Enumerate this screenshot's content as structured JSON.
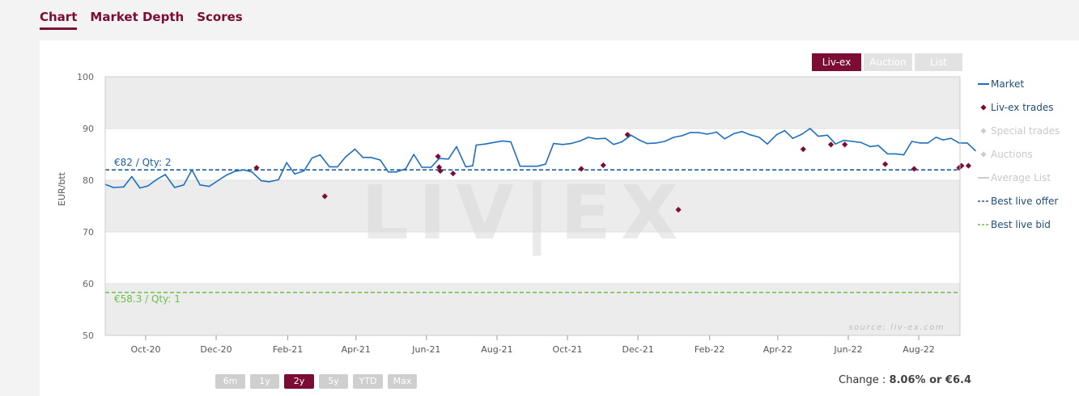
{
  "tabs": [
    {
      "label": "Chart",
      "active": true
    },
    {
      "label": "Market Depth",
      "active": false
    },
    {
      "label": "Scores",
      "active": false
    }
  ],
  "source_buttons": [
    {
      "label": "Liv-ex",
      "active": true
    },
    {
      "label": "Auction",
      "active": false
    },
    {
      "label": "List",
      "active": false
    }
  ],
  "range_buttons": [
    {
      "label": "6m",
      "active": false
    },
    {
      "label": "1y",
      "active": false
    },
    {
      "label": "2y",
      "active": true
    },
    {
      "label": "5y",
      "active": false
    },
    {
      "label": "YTD",
      "active": false
    },
    {
      "label": "Max",
      "active": false
    }
  ],
  "change": {
    "label": "Change :",
    "value": "8.06% or €6.4"
  },
  "watermark": "LIV|EX",
  "source_note": "source: liv-ex.com",
  "colors": {
    "brand": "#7b0c34",
    "market": "#1f6fc0",
    "offer": "#1a5e9e",
    "bid": "#6cc04a",
    "band": "#ececec"
  },
  "chart_data": {
    "type": "line",
    "ylabel": "EUR/btt",
    "ylim": [
      50,
      100
    ],
    "yticks": [
      50,
      60,
      70,
      80,
      90,
      100
    ],
    "xlim": [
      "2020-08-27",
      "2022-08-22"
    ],
    "xticks": [
      {
        "date": "2020-10-01",
        "label": "Oct-20"
      },
      {
        "date": "2020-12-01",
        "label": "Dec-20"
      },
      {
        "date": "2021-02-01",
        "label": "Feb-21"
      },
      {
        "date": "2021-04-01",
        "label": "Apr-21"
      },
      {
        "date": "2021-06-01",
        "label": "Jun-21"
      },
      {
        "date": "2021-08-01",
        "label": "Aug-21"
      },
      {
        "date": "2021-10-01",
        "label": "Oct-21"
      },
      {
        "date": "2021-12-01",
        "label": "Dec-21"
      },
      {
        "date": "2022-02-01",
        "label": "Feb-22"
      },
      {
        "date": "2022-04-01",
        "label": "Apr-22"
      },
      {
        "date": "2022-06-01",
        "label": "Jun-22"
      },
      {
        "date": "2022-08-01",
        "label": "Aug-22"
      }
    ],
    "legend_position": "right",
    "legend": [
      {
        "name": "Market",
        "style": "line",
        "color": "#1f6fc0",
        "enabled": true
      },
      {
        "name": "Liv-ex trades",
        "style": "diamond",
        "color": "#7b0c34",
        "enabled": true
      },
      {
        "name": "Special trades",
        "style": "diamond",
        "color": "#cccccc",
        "enabled": false
      },
      {
        "name": "Auctions",
        "style": "diamond",
        "color": "#cccccc",
        "enabled": false
      },
      {
        "name": "Average List",
        "style": "line",
        "color": "#cccccc",
        "enabled": false
      },
      {
        "name": "Best live offer",
        "style": "dash",
        "color": "#1a5e9e",
        "enabled": true
      },
      {
        "name": "Best live bid",
        "style": "dash",
        "color": "#6cc04a",
        "enabled": true
      }
    ],
    "market": [
      [
        "2020-08-27",
        79.2
      ],
      [
        "2020-09-03",
        78.6
      ],
      [
        "2020-09-12",
        78.7
      ],
      [
        "2020-09-19",
        80.7
      ],
      [
        "2020-09-26",
        78.5
      ],
      [
        "2020-10-03",
        78.9
      ],
      [
        "2020-10-11",
        80.2
      ],
      [
        "2020-10-18",
        81.1
      ],
      [
        "2020-10-26",
        78.6
      ],
      [
        "2020-11-03",
        79.1
      ],
      [
        "2020-11-10",
        82.0
      ],
      [
        "2020-11-17",
        79.1
      ],
      [
        "2020-11-25",
        78.8
      ],
      [
        "2020-12-03",
        80.0
      ],
      [
        "2020-12-10",
        81.0
      ],
      [
        "2020-12-17",
        81.7
      ],
      [
        "2020-12-25",
        82.0
      ],
      [
        "2021-01-01",
        81.6
      ],
      [
        "2021-01-09",
        79.9
      ],
      [
        "2021-01-16",
        79.7
      ],
      [
        "2021-01-24",
        80.1
      ],
      [
        "2021-01-31",
        83.4
      ],
      [
        "2021-02-07",
        81.2
      ],
      [
        "2021-02-15",
        81.8
      ],
      [
        "2021-02-22",
        84.3
      ],
      [
        "2021-03-01",
        84.9
      ],
      [
        "2021-03-09",
        82.6
      ],
      [
        "2021-03-16",
        82.6
      ],
      [
        "2021-03-23",
        84.5
      ],
      [
        "2021-03-31",
        86.0
      ],
      [
        "2021-04-07",
        84.4
      ],
      [
        "2021-04-14",
        84.4
      ],
      [
        "2021-04-22",
        83.9
      ],
      [
        "2021-04-29",
        81.6
      ],
      [
        "2021-05-06",
        81.6
      ],
      [
        "2021-05-14",
        82.2
      ],
      [
        "2021-05-21",
        85.0
      ],
      [
        "2021-05-28",
        82.5
      ],
      [
        "2021-06-05",
        82.5
      ],
      [
        "2021-06-12",
        84.2
      ],
      [
        "2021-06-20",
        84.1
      ],
      [
        "2021-06-27",
        86.5
      ],
      [
        "2021-07-05",
        82.6
      ],
      [
        "2021-07-11",
        82.8
      ],
      [
        "2021-07-14",
        86.8
      ],
      [
        "2021-07-22",
        87.0
      ],
      [
        "2021-07-29",
        87.3
      ],
      [
        "2021-08-06",
        87.6
      ],
      [
        "2021-08-13",
        87.4
      ],
      [
        "2021-08-21",
        82.7
      ],
      [
        "2021-08-28",
        82.7
      ],
      [
        "2021-09-05",
        82.7
      ],
      [
        "2021-09-12",
        83.1
      ],
      [
        "2021-09-19",
        87.1
      ],
      [
        "2021-09-27",
        86.9
      ],
      [
        "2021-10-04",
        87.1
      ],
      [
        "2021-10-12",
        87.6
      ],
      [
        "2021-10-19",
        88.3
      ],
      [
        "2021-10-26",
        88.0
      ],
      [
        "2021-11-03",
        88.1
      ],
      [
        "2021-11-10",
        86.9
      ],
      [
        "2021-11-17",
        87.4
      ],
      [
        "2021-11-25",
        88.7
      ],
      [
        "2021-12-02",
        87.8
      ],
      [
        "2021-12-09",
        87.1
      ],
      [
        "2021-12-17",
        87.2
      ],
      [
        "2021-12-24",
        87.5
      ],
      [
        "2022-01-01",
        88.3
      ],
      [
        "2022-01-08",
        88.6
      ],
      [
        "2022-01-15",
        89.2
      ],
      [
        "2022-01-23",
        89.2
      ],
      [
        "2022-01-30",
        88.9
      ],
      [
        "2022-02-07",
        89.3
      ],
      [
        "2022-02-14",
        88.0
      ],
      [
        "2022-02-22",
        89.0
      ],
      [
        "2022-03-01",
        89.4
      ],
      [
        "2022-03-08",
        88.8
      ],
      [
        "2022-03-16",
        88.3
      ],
      [
        "2022-03-23",
        87.0
      ],
      [
        "2022-03-31",
        88.8
      ],
      [
        "2022-04-07",
        89.6
      ],
      [
        "2022-04-14",
        88.1
      ],
      [
        "2022-04-22",
        88.9
      ],
      [
        "2022-04-29",
        90.0
      ],
      [
        "2022-05-06",
        88.5
      ],
      [
        "2022-05-14",
        88.7
      ],
      [
        "2022-05-21",
        87.0
      ],
      [
        "2022-05-28",
        87.7
      ],
      [
        "2022-06-05",
        87.5
      ],
      [
        "2022-06-12",
        87.3
      ],
      [
        "2022-06-20",
        86.5
      ],
      [
        "2022-06-27",
        86.7
      ],
      [
        "2022-07-05",
        85.1
      ],
      [
        "2022-07-12",
        85.1
      ],
      [
        "2022-07-19",
        84.9
      ],
      [
        "2022-07-26",
        87.5
      ],
      [
        "2022-08-02",
        87.2
      ],
      [
        "2022-08-09",
        87.2
      ],
      [
        "2022-08-16",
        88.3
      ],
      [
        "2022-08-22",
        87.8
      ],
      [
        "2022-08-29",
        88.1
      ],
      [
        "2022-09-05",
        87.2
      ],
      [
        "2022-09-12",
        87.2
      ],
      [
        "2022-09-19",
        85.7
      ]
    ],
    "livex_trades": [
      [
        "2021-01-05",
        82.4
      ],
      [
        "2021-03-05",
        76.9
      ],
      [
        "2021-06-11",
        84.6
      ],
      [
        "2021-06-12",
        82.5
      ],
      [
        "2021-06-13",
        81.8
      ],
      [
        "2021-06-24",
        81.3
      ],
      [
        "2021-10-13",
        82.2
      ],
      [
        "2021-11-01",
        82.9
      ],
      [
        "2021-11-22",
        88.8
      ],
      [
        "2022-01-05",
        74.3
      ],
      [
        "2022-04-23",
        86.0
      ],
      [
        "2022-05-17",
        86.9
      ],
      [
        "2022-05-29",
        86.9
      ],
      [
        "2022-07-03",
        83.1
      ],
      [
        "2022-07-28",
        82.2
      ],
      [
        "2022-09-05",
        82.4
      ],
      [
        "2022-09-07",
        82.8
      ],
      [
        "2022-09-13",
        82.8
      ]
    ],
    "best_live_offer": {
      "value": 82,
      "label": "€82 / Qty: 2"
    },
    "best_live_bid": {
      "value": 58.3,
      "label": "€58.3 / Qty: 1"
    }
  }
}
